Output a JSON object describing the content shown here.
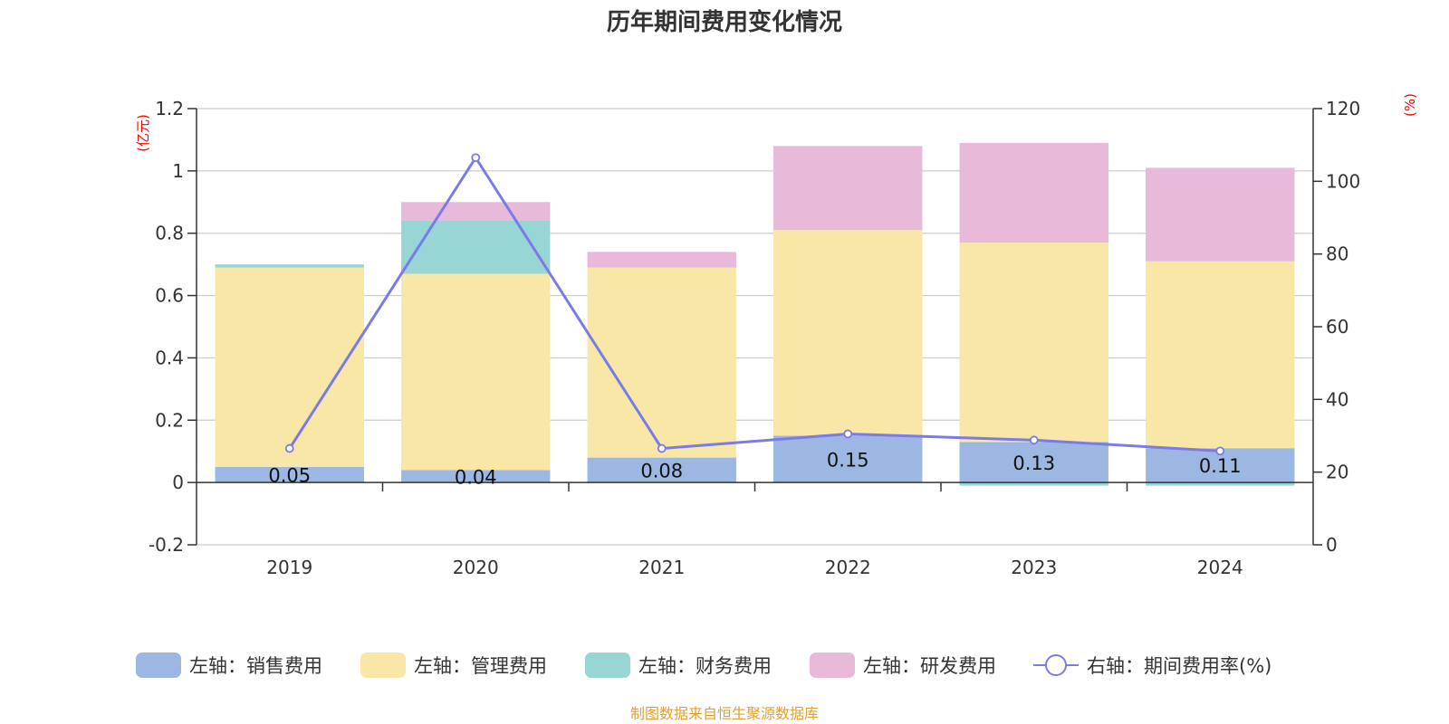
{
  "chart_data": {
    "type": "bar",
    "title": "历年期间费用变化情况",
    "categories": [
      "2019",
      "2020",
      "2021",
      "2022",
      "2023",
      "2024"
    ],
    "left_axis": {
      "unit": "(亿元)",
      "ylim": [
        -0.2,
        1.2
      ],
      "ticks": [
        "-0.2",
        "0",
        "0.2",
        "0.4",
        "0.6",
        "0.8",
        "1",
        "1.2"
      ]
    },
    "right_axis": {
      "unit": "(%)",
      "ylim": [
        0,
        120
      ],
      "ticks": [
        "0",
        "20",
        "40",
        "60",
        "80",
        "100",
        "120"
      ]
    },
    "grid": true,
    "legend_position": "bottom",
    "series": [
      {
        "name": "左轴：销售费用",
        "type": "bar",
        "axis": "left",
        "color": "#9cb8e2",
        "values": [
          0.05,
          0.04,
          0.08,
          0.15,
          0.13,
          0.11
        ],
        "labels": [
          "0.05",
          "0.04",
          "0.08",
          "0.15",
          "0.13",
          "0.11"
        ]
      },
      {
        "name": "左轴：管理费用",
        "type": "bar",
        "axis": "left",
        "color": "#f8e7a7",
        "values": [
          0.64,
          0.63,
          0.61,
          0.66,
          0.64,
          0.6
        ]
      },
      {
        "name": "左轴：财务费用",
        "type": "bar",
        "axis": "left",
        "color": "#98d5d5",
        "values": [
          0.01,
          0.17,
          0.0,
          0.0,
          -0.01,
          -0.01
        ]
      },
      {
        "name": "左轴：研发费用",
        "type": "bar",
        "axis": "left",
        "color": "#e8b9d9",
        "values": [
          0.0,
          0.06,
          0.05,
          0.27,
          0.32,
          0.3
        ]
      },
      {
        "name": "右轴：期间费用率(%)",
        "type": "line",
        "axis": "right",
        "color": "#7b7be8",
        "values": [
          26.5,
          106.5,
          26.5,
          30.5,
          28.8,
          25.8
        ]
      }
    ]
  },
  "footer": {
    "source": "制图数据来自恒生聚源数据库"
  }
}
